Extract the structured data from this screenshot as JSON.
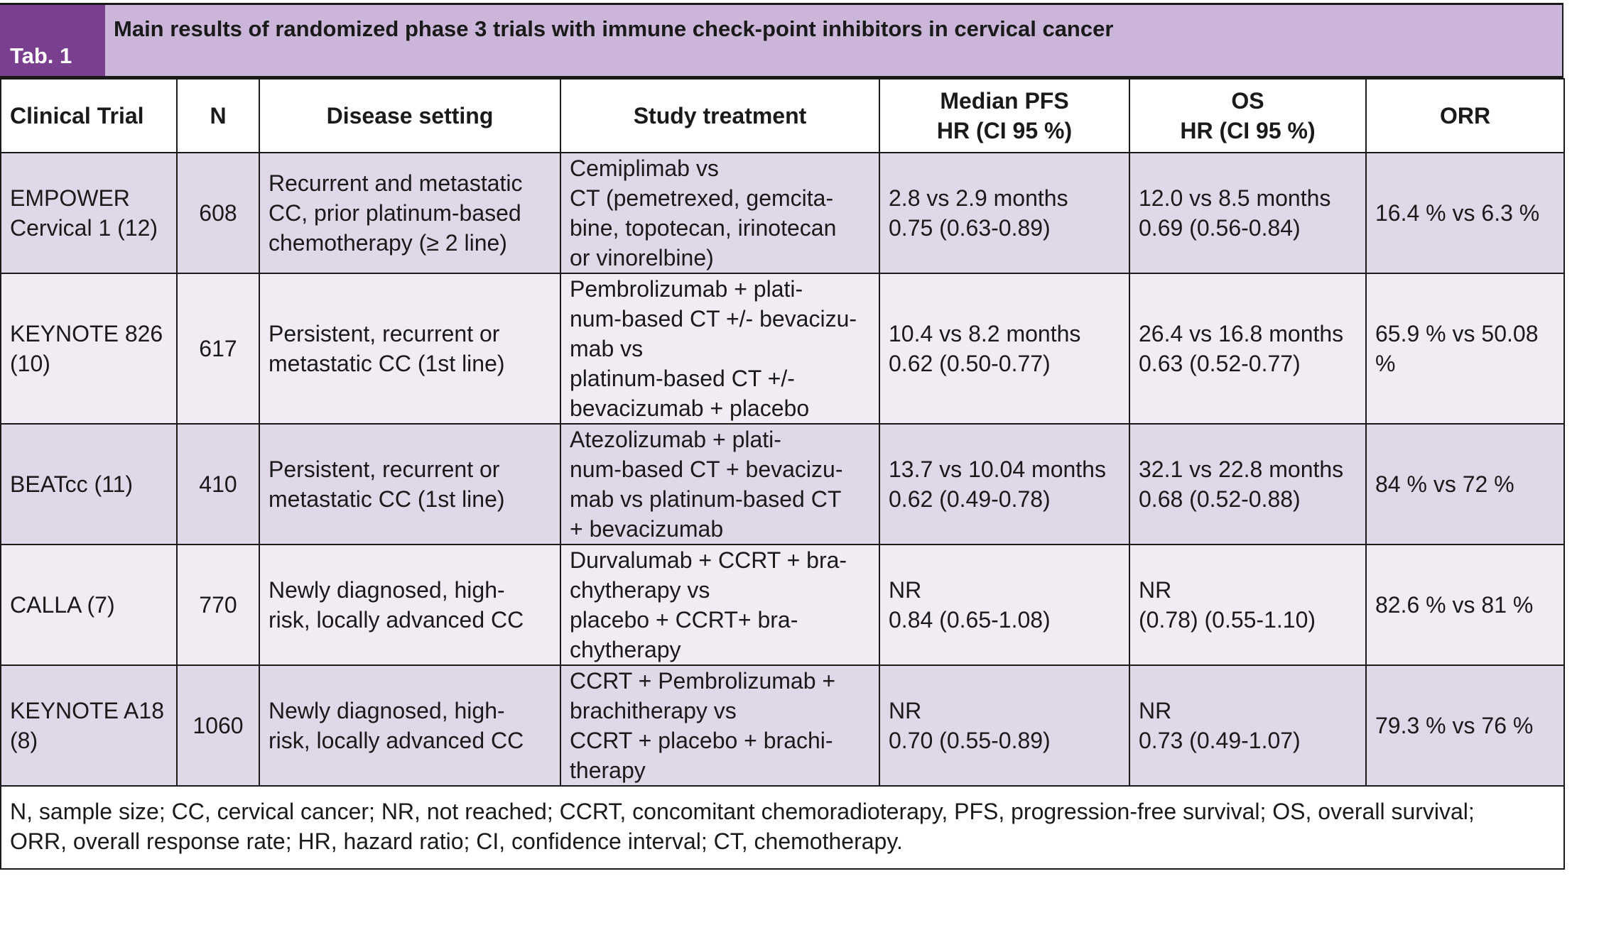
{
  "tab_label": "Tab. 1",
  "title": "Main results of randomized phase 3 trials with immune check-point inhibitors in cervical cancer",
  "headers": {
    "trial": "Clinical Trial",
    "n": "N",
    "setting": "Disease setting",
    "treatment": "Study treatment",
    "pfs": [
      "Median PFS",
      "HR (CI 95 %)"
    ],
    "os": [
      "OS",
      "HR (CI 95 %)"
    ],
    "orr": "ORR"
  },
  "rows": [
    {
      "trial": [
        "EMPOWER",
        "Cervical 1 (12)"
      ],
      "n": "608",
      "setting": [
        "Recurrent and metastatic",
        "CC, prior platinum-based",
        "chemotherapy (≥ 2 line)"
      ],
      "treatment": [
        "Cemiplimab vs",
        "CT (pemetrexed, gemcita-",
        "bine, topotecan, irinotecan",
        "or vinorelbine)"
      ],
      "pfs": [
        "2.8 vs 2.9 months",
        "0.75 (0.63-0.89)"
      ],
      "os": [
        "12.0 vs 8.5 months",
        "0.69 (0.56-0.84)"
      ],
      "orr": "16.4 % vs 6.3 %"
    },
    {
      "trial": [
        "KEYNOTE 826",
        "(10)"
      ],
      "n": "617",
      "setting": [
        "Persistent, recurrent or",
        "metastatic CC (1st line)"
      ],
      "treatment": [
        "Pembrolizumab + plati-",
        "num-based CT +/- bevacizu-",
        "mab vs",
        "platinum-based CT +/-",
        "bevacizumab + placebo"
      ],
      "pfs": [
        "10.4 vs 8.2 months",
        "0.62 (0.50-0.77)"
      ],
      "os": [
        "26.4 vs 16.8 months",
        "0.63 (0.52-0.77)"
      ],
      "orr": "65.9 % vs 50.08 %"
    },
    {
      "trial": [
        "BEATcc (11)"
      ],
      "n": "410",
      "setting": [
        "Persistent, recurrent or",
        "metastatic CC (1st line)"
      ],
      "treatment": [
        "Atezolizumab + plati-",
        "num-based CT + bevacizu-",
        "mab vs platinum-based CT",
        "+ bevacizumab"
      ],
      "pfs": [
        "13.7 vs 10.04 months",
        "0.62 (0.49-0.78)"
      ],
      "os": [
        "32.1 vs 22.8 months",
        "0.68 (0.52-0.88)"
      ],
      "orr": "84 % vs 72 %"
    },
    {
      "trial": [
        "CALLA (7)"
      ],
      "n": "770",
      "setting": [
        "Newly diagnosed, high-",
        "risk, locally advanced CC"
      ],
      "treatment": [
        "Durvalumab + CCRT + bra-",
        "chytherapy vs",
        "placebo + CCRT+ bra-",
        "chytherapy"
      ],
      "pfs": [
        "NR",
        "0.84 (0.65-1.08)"
      ],
      "os": [
        "NR",
        "(0.78) (0.55-1.10)"
      ],
      "orr": "82.6 % vs 81 %"
    },
    {
      "trial": [
        "KEYNOTE A18",
        "(8)"
      ],
      "n": "1060",
      "setting": [
        "Newly diagnosed, high-",
        "risk, locally advanced CC"
      ],
      "treatment": [
        "CCRT + Pembrolizumab +",
        "brachitherapy vs",
        "CCRT + placebo + brachi-",
        "therapy"
      ],
      "pfs": [
        "NR",
        "0.70 (0.55-0.89)"
      ],
      "os": [
        "NR",
        "0.73 (0.49-1.07)"
      ],
      "orr": "79.3 % vs 76 %"
    }
  ],
  "footnote": [
    "N, sample size; CC, cervical cancer; NR, not reached; CCRT, concomitant chemoradioterapy, PFS, progression-free survival; OS, overall survival;",
    "ORR, overall response rate; HR, hazard ratio; CI, confidence interval; CT, chemotherapy."
  ]
}
